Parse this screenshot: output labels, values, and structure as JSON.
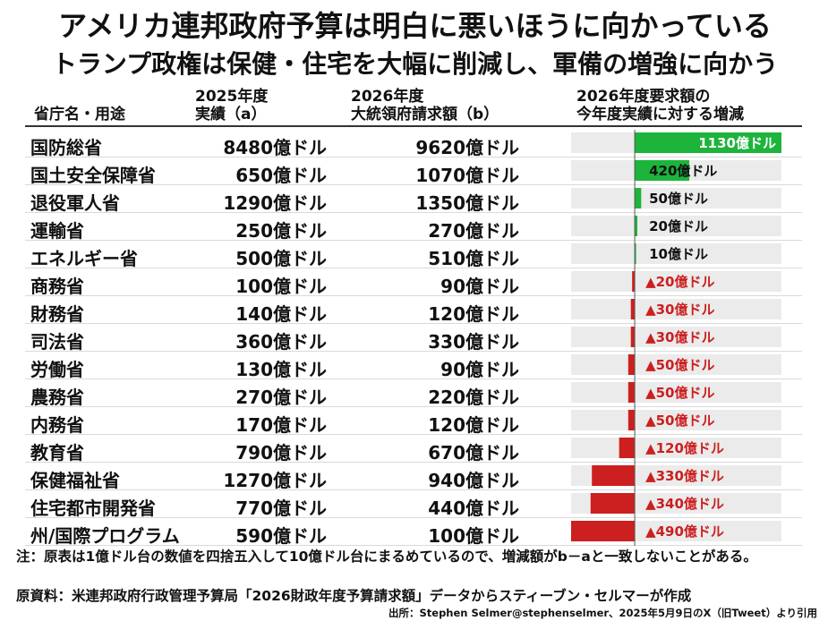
{
  "title": "アメリカ連邦政府予算は明白に悪いほうに向かっている",
  "subtitle": "トランプ政権は保健・住宅を大幅に削減し、軍備の増強に向かう",
  "headers": {
    "dept": "省庁名・用途",
    "a_line1": "2025年度",
    "a_line2": "実績（a）",
    "b_line1": "2026年度",
    "b_line2": "大統領府請求額（b）",
    "diff_line1": "2026年度要求額の",
    "diff_line2": "今年度実績に対する増減"
  },
  "rows": [
    {
      "dept": "国防総省",
      "fy2025": "8480億ドル",
      "fy2026": "9620億ドル",
      "change": "1130億ドル"
    },
    {
      "dept": "国土安全保障省",
      "fy2025": "650億ドル",
      "fy2026": "1070億ドル",
      "change": "420億ドル"
    },
    {
      "dept": "退役軍人省",
      "fy2025": "1290億ドル",
      "fy2026": "1350億ドル",
      "change": "50億ドル"
    },
    {
      "dept": "運輸省",
      "fy2025": "250億ドル",
      "fy2026": "270億ドル",
      "change": "20億ドル"
    },
    {
      "dept": "エネルギー省",
      "fy2025": "500億ドル",
      "fy2026": "510億ドル",
      "change": "10億ドル"
    },
    {
      "dept": "商務省",
      "fy2025": "100億ドル",
      "fy2026": "90億ドル",
      "change": "▲20億ドル"
    },
    {
      "dept": "財務省",
      "fy2025": "140億ドル",
      "fy2026": "120億ドル",
      "change": "▲30億ドル"
    },
    {
      "dept": "司法省",
      "fy2025": "360億ドル",
      "fy2026": "330億ドル",
      "change": "▲30億ドル"
    },
    {
      "dept": "労働省",
      "fy2025": "130億ドル",
      "fy2026": "90億ドル",
      "change": "▲50億ドル"
    },
    {
      "dept": "農務省",
      "fy2025": "270億ドル",
      "fy2026": "220億ドル",
      "change": "▲50億ドル"
    },
    {
      "dept": "内務省",
      "fy2025": "170億ドル",
      "fy2026": "120億ドル",
      "change": "▲50億ドル"
    },
    {
      "dept": "教育省",
      "fy2025": "790億ドル",
      "fy2026": "670億ドル",
      "change": "▲120億ドル"
    },
    {
      "dept": "保健福祉省",
      "fy2025": "1270億ドル",
      "fy2026": "940億ドル",
      "change": "▲330億ドル"
    },
    {
      "dept": "住宅都市開発省",
      "fy2025": "770億ドル",
      "fy2026": "440億ドル",
      "change": "▲340億ドル"
    },
    {
      "dept": "州/国際プログラム",
      "fy2025": "590億ドル",
      "fy2026": "100億ドル",
      "change": "▲490億ドル"
    }
  ],
  "chart_data": {
    "type": "bar",
    "orientation": "horizontal",
    "unit": "億ドル",
    "categories": [
      "国防総省",
      "国土安全保障省",
      "退役軍人省",
      "運輸省",
      "エネルギー省",
      "商務省",
      "財務省",
      "司法省",
      "労働省",
      "農務省",
      "内務省",
      "教育省",
      "保健福祉省",
      "住宅都市開発省",
      "州/国際プログラム"
    ],
    "values": [
      1130,
      420,
      50,
      20,
      10,
      -20,
      -30,
      -30,
      -50,
      -50,
      -50,
      -120,
      -330,
      -340,
      -490
    ],
    "xlim": [
      -490,
      1130
    ],
    "grid": false,
    "colors": {
      "positive": "#1db43c",
      "negative": "#cc1f1f",
      "track": "#ebebeb",
      "negative_label": "#cc1f1f"
    }
  },
  "notes": {
    "note": "注：原表は1億ドル台の数値を四捨五入して10億ドル台にまるめているので、増減額がb－aと一致しないことがある。",
    "source": "原資料：米連邦政府行政管理予算局「2026財政年度予算請求額」データからスティーブン・セルマーが作成",
    "citation": "出所：Stephen Selmer@stephenselmer、2025年5月9日のX（旧Tweet）より引用"
  }
}
